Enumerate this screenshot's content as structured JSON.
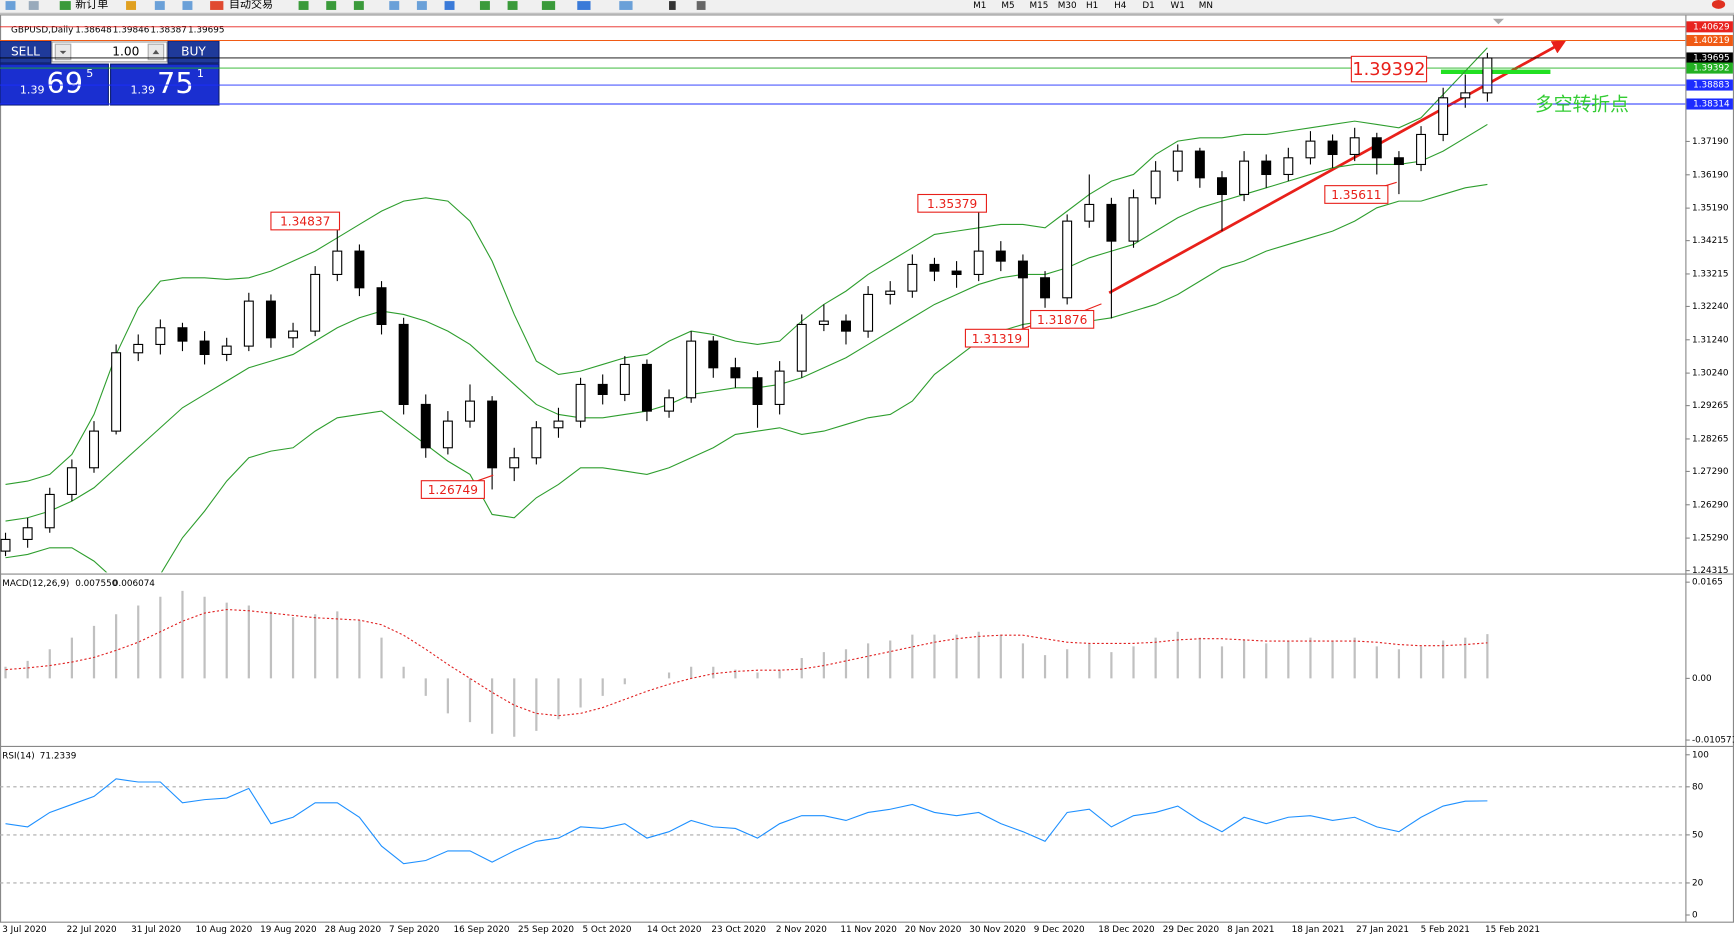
{
  "toolbar": {
    "buttons": [
      "新订单",
      "自动交易"
    ],
    "timeframes": [
      "M1",
      "M5",
      "M15",
      "M30",
      "H1",
      "H4",
      "D1",
      "W1",
      "MN"
    ]
  },
  "trade_panel": {
    "sell": "SELL",
    "buy": "BUY",
    "lot": "1.00",
    "bid": {
      "big": "1.39",
      "pips": "69",
      "point": "5"
    },
    "ask": {
      "big": "1.39",
      "pips": "75",
      "point": "1"
    }
  },
  "chart_data": [
    {
      "type": "candlestick",
      "title": "GBPUSD,Daily",
      "header_values": [
        "1.38648",
        "1.39846",
        "1.38387",
        "1.39695"
      ],
      "up_color": "#ffffff",
      "down_color": "#000000",
      "band_color": "#2e9e2e",
      "ylim": [
        1.2426,
        1.4097
      ],
      "yticks": [
        {
          "value": 1.3719,
          "label": "1.37190"
        },
        {
          "value": 1.3619,
          "label": "1.36190"
        },
        {
          "value": 1.3519,
          "label": "1.35190"
        },
        {
          "value": 1.34215,
          "label": "1.34215"
        },
        {
          "value": 1.33215,
          "label": "1.33215"
        },
        {
          "value": 1.3224,
          "label": "1.32240"
        },
        {
          "value": 1.3124,
          "label": "1.31240"
        },
        {
          "value": 1.3024,
          "label": "1.30240"
        },
        {
          "value": 1.29265,
          "label": "1.29265"
        },
        {
          "value": 1.28265,
          "label": "1.28265"
        },
        {
          "value": 1.2729,
          "label": "1.27290"
        },
        {
          "value": 1.2629,
          "label": "1.26290"
        },
        {
          "value": 1.2529,
          "label": "1.25290"
        },
        {
          "value": 1.24315,
          "label": "1.24315"
        }
      ],
      "price_tags": [
        {
          "value": 1.40629,
          "color": "#e8231f"
        },
        {
          "value": 1.40219,
          "color": "#f05a14"
        },
        {
          "value": 1.39695,
          "color": "#000000"
        },
        {
          "value": 1.39392,
          "color": "#22b022"
        },
        {
          "value": 1.38883,
          "color": "#1c2cff"
        },
        {
          "value": 1.38314,
          "color": "#1c2cff"
        }
      ],
      "annotations": [
        "1.34837",
        "1.35379",
        "1.31319",
        "1.31876",
        "1.26749",
        "1.35611",
        "1.39392"
      ],
      "note": "多空转折点",
      "x_labels": [
        "3 Jul 2020",
        "22 Jul 2020",
        "31 Jul 2020",
        "10 Aug 2020",
        "19 Aug 2020",
        "28 Aug 2020",
        "7 Sep 2020",
        "16 Sep 2020",
        "25 Sep 2020",
        "5 Oct 2020",
        "14 Oct 2020",
        "23 Oct 2020",
        "2 Nov 2020",
        "11 Nov 2020",
        "20 Nov 2020",
        "30 Nov 2020",
        "9 Dec 2020",
        "18 Dec 2020",
        "29 Dec 2020",
        "8 Jan 2021",
        "18 Jan 2021",
        "27 Jan 2021",
        "5 Feb 2021",
        "15 Feb 2021"
      ],
      "ohlc": [
        [
          1.249,
          1.2545,
          1.2475,
          1.2525
        ],
        [
          1.2525,
          1.259,
          1.25,
          1.256
        ],
        [
          1.256,
          1.268,
          1.2545,
          1.266
        ],
        [
          1.266,
          1.2765,
          1.264,
          1.274
        ],
        [
          1.274,
          1.288,
          1.2725,
          1.285
        ],
        [
          1.285,
          1.311,
          1.284,
          1.3085
        ],
        [
          1.3085,
          1.314,
          1.306,
          1.311
        ],
        [
          1.311,
          1.3185,
          1.308,
          1.316
        ],
        [
          1.316,
          1.3175,
          1.309,
          1.312
        ],
        [
          1.312,
          1.315,
          1.305,
          1.308
        ],
        [
          1.308,
          1.313,
          1.306,
          1.3105
        ],
        [
          1.3105,
          1.3265,
          1.309,
          1.324
        ],
        [
          1.324,
          1.326,
          1.31,
          1.313
        ],
        [
          1.313,
          1.3175,
          1.31,
          1.315
        ],
        [
          1.315,
          1.3345,
          1.3135,
          1.332
        ],
        [
          1.332,
          1.3484,
          1.33,
          1.339
        ],
        [
          1.339,
          1.341,
          1.3255,
          1.328
        ],
        [
          1.328,
          1.33,
          1.314,
          1.317
        ],
        [
          1.317,
          1.319,
          1.29,
          1.293
        ],
        [
          1.293,
          1.296,
          1.277,
          1.28
        ],
        [
          1.28,
          1.291,
          1.278,
          1.288
        ],
        [
          1.288,
          1.299,
          1.286,
          1.294
        ],
        [
          1.294,
          1.2955,
          1.2675,
          1.274
        ],
        [
          1.274,
          1.28,
          1.27,
          1.277
        ],
        [
          1.277,
          1.288,
          1.275,
          1.286
        ],
        [
          1.286,
          1.292,
          1.283,
          1.288
        ],
        [
          1.288,
          1.301,
          1.286,
          1.299
        ],
        [
          1.299,
          1.302,
          1.293,
          1.296
        ],
        [
          1.296,
          1.3075,
          1.294,
          1.305
        ],
        [
          1.305,
          1.3065,
          1.288,
          1.291
        ],
        [
          1.291,
          1.2975,
          1.289,
          1.295
        ],
        [
          1.295,
          1.315,
          1.2935,
          1.312
        ],
        [
          1.312,
          1.3135,
          1.301,
          1.304
        ],
        [
          1.304,
          1.307,
          1.298,
          1.301
        ],
        [
          1.301,
          1.303,
          1.286,
          1.293
        ],
        [
          1.293,
          1.306,
          1.29,
          1.303
        ],
        [
          1.303,
          1.32,
          1.301,
          1.317
        ],
        [
          1.317,
          1.323,
          1.315,
          1.318
        ],
        [
          1.318,
          1.32,
          1.311,
          1.315
        ],
        [
          1.315,
          1.3285,
          1.313,
          1.326
        ],
        [
          1.326,
          1.33,
          1.323,
          1.327
        ],
        [
          1.327,
          1.338,
          1.325,
          1.335
        ],
        [
          1.335,
          1.337,
          1.33,
          1.333
        ],
        [
          1.333,
          1.336,
          1.328,
          1.332
        ],
        [
          1.332,
          1.3538,
          1.33,
          1.339
        ],
        [
          1.339,
          1.342,
          1.333,
          1.336
        ],
        [
          1.336,
          1.338,
          1.3132,
          1.331
        ],
        [
          1.331,
          1.333,
          1.322,
          1.325
        ],
        [
          1.325,
          1.35,
          1.323,
          1.348
        ],
        [
          1.348,
          1.362,
          1.346,
          1.353
        ],
        [
          1.353,
          1.355,
          1.3188,
          1.342
        ],
        [
          1.342,
          1.3575,
          1.34,
          1.355
        ],
        [
          1.355,
          1.366,
          1.353,
          1.363
        ],
        [
          1.363,
          1.371,
          1.36,
          1.369
        ],
        [
          1.369,
          1.37,
          1.358,
          1.361
        ],
        [
          1.361,
          1.363,
          1.345,
          1.356
        ],
        [
          1.356,
          1.369,
          1.354,
          1.366
        ],
        [
          1.366,
          1.368,
          1.358,
          1.362
        ],
        [
          1.362,
          1.37,
          1.36,
          1.367
        ],
        [
          1.367,
          1.375,
          1.365,
          1.372
        ],
        [
          1.372,
          1.374,
          1.364,
          1.368
        ],
        [
          1.368,
          1.376,
          1.366,
          1.373
        ],
        [
          1.373,
          1.3745,
          1.362,
          1.367
        ],
        [
          1.367,
          1.369,
          1.3561,
          1.365
        ],
        [
          1.365,
          1.3765,
          1.363,
          1.374
        ],
        [
          1.374,
          1.388,
          1.372,
          1.385
        ],
        [
          1.385,
          1.392,
          1.382,
          1.38648
        ],
        [
          1.38648,
          1.39846,
          1.38387,
          1.39695
        ]
      ],
      "bollinger": {
        "upper": [
          1.269,
          1.27,
          1.272,
          1.278,
          1.29,
          1.308,
          1.322,
          1.33,
          1.331,
          1.331,
          1.3305,
          1.331,
          1.333,
          1.336,
          1.339,
          1.343,
          1.347,
          1.351,
          1.354,
          1.355,
          1.354,
          1.348,
          1.336,
          1.32,
          1.306,
          1.302,
          1.303,
          1.305,
          1.307,
          1.308,
          1.312,
          1.315,
          1.314,
          1.312,
          1.311,
          1.312,
          1.318,
          1.323,
          1.327,
          1.332,
          1.336,
          1.34,
          1.344,
          1.345,
          1.346,
          1.347,
          1.347,
          1.346,
          1.351,
          1.356,
          1.36,
          1.362,
          1.368,
          1.372,
          1.373,
          1.373,
          1.374,
          1.374,
          1.375,
          1.376,
          1.377,
          1.378,
          1.377,
          1.376,
          1.379,
          1.386,
          1.393,
          1.4
        ],
        "middle": [
          1.258,
          1.259,
          1.261,
          1.264,
          1.268,
          1.274,
          1.28,
          1.286,
          1.292,
          1.296,
          1.3,
          1.304,
          1.306,
          1.308,
          1.312,
          1.316,
          1.319,
          1.321,
          1.32,
          1.318,
          1.315,
          1.311,
          1.305,
          1.299,
          1.293,
          1.29,
          1.289,
          1.289,
          1.29,
          1.291,
          1.293,
          1.296,
          1.297,
          1.298,
          1.298,
          1.299,
          1.301,
          1.304,
          1.307,
          1.311,
          1.315,
          1.319,
          1.323,
          1.326,
          1.329,
          1.331,
          1.332,
          1.332,
          1.334,
          1.337,
          1.339,
          1.341,
          1.345,
          1.349,
          1.352,
          1.354,
          1.356,
          1.358,
          1.36,
          1.362,
          1.364,
          1.365,
          1.365,
          1.365,
          1.366,
          1.369,
          1.373,
          1.377
        ],
        "lower": [
          1.247,
          1.248,
          1.25,
          1.25,
          1.246,
          1.24,
          1.238,
          1.242,
          1.253,
          1.261,
          1.27,
          1.277,
          1.279,
          1.28,
          1.285,
          1.289,
          1.29,
          1.291,
          1.286,
          1.281,
          1.276,
          1.272,
          1.26,
          1.259,
          1.265,
          1.269,
          1.274,
          1.274,
          1.273,
          1.272,
          1.274,
          1.277,
          1.28,
          1.284,
          1.285,
          1.286,
          1.284,
          1.285,
          1.287,
          1.289,
          1.29,
          1.294,
          1.302,
          1.307,
          1.312,
          1.315,
          1.317,
          1.318,
          1.317,
          1.318,
          1.319,
          1.321,
          1.323,
          1.326,
          1.33,
          1.334,
          1.336,
          1.339,
          1.341,
          1.343,
          1.345,
          1.348,
          1.352,
          1.354,
          1.354,
          1.356,
          1.358,
          1.359
        ]
      }
    },
    {
      "type": "macd",
      "title": "MACD(12,26,9)",
      "header_values": [
        "0.007550",
        "0.006074"
      ],
      "hist_color": "#c0c0c0",
      "signal_color": "#e02020",
      "ylim": [
        -0.0112,
        0.0176
      ],
      "yticks": [
        0.0165,
        {
          "value": 0,
          "label": "0.00"
        },
        -0.010571
      ],
      "histogram": [
        0.002,
        0.003,
        0.005,
        0.007,
        0.009,
        0.011,
        0.0125,
        0.014,
        0.015,
        0.014,
        0.013,
        0.0125,
        0.0115,
        0.0105,
        0.011,
        0.0115,
        0.01,
        0.007,
        0.002,
        -0.003,
        -0.006,
        -0.0075,
        -0.0095,
        -0.01,
        -0.009,
        -0.007,
        -0.005,
        -0.003,
        -0.001,
        0.0,
        0.001,
        0.002,
        0.002,
        0.0015,
        0.001,
        0.0015,
        0.0035,
        0.0045,
        0.005,
        0.006,
        0.0065,
        0.0075,
        0.0075,
        0.0075,
        0.008,
        0.0075,
        0.006,
        0.004,
        0.005,
        0.006,
        0.0045,
        0.0055,
        0.007,
        0.008,
        0.007,
        0.0055,
        0.0065,
        0.006,
        0.0065,
        0.007,
        0.0065,
        0.007,
        0.0055,
        0.005,
        0.0055,
        0.0065,
        0.007,
        0.0076
      ],
      "signal": [
        0.0015,
        0.0018,
        0.0022,
        0.0028,
        0.0036,
        0.0048,
        0.0062,
        0.008,
        0.0098,
        0.0112,
        0.0118,
        0.0116,
        0.0112,
        0.0108,
        0.0104,
        0.0102,
        0.01,
        0.0092,
        0.0074,
        0.005,
        0.0024,
        0.0,
        -0.0024,
        -0.0046,
        -0.006,
        -0.0064,
        -0.006,
        -0.005,
        -0.0036,
        -0.0022,
        -0.001,
        0.0,
        0.0008,
        0.0012,
        0.0014,
        0.0014,
        0.0016,
        0.0022,
        0.003,
        0.0038,
        0.0046,
        0.0054,
        0.0062,
        0.0068,
        0.0072,
        0.0074,
        0.0074,
        0.0068,
        0.0062,
        0.006,
        0.006,
        0.006,
        0.0062,
        0.0066,
        0.0068,
        0.0068,
        0.0066,
        0.0064,
        0.0064,
        0.0064,
        0.0064,
        0.0064,
        0.0062,
        0.0058,
        0.0056,
        0.0056,
        0.0058,
        0.0061
      ]
    },
    {
      "type": "rsi",
      "title": "RSI(14)",
      "header_values": [
        "71.2339"
      ],
      "color": "#1e90ff",
      "ylim": [
        0,
        100
      ],
      "yticks": [
        100,
        80,
        50,
        20,
        0
      ],
      "levels": [
        80,
        50,
        20
      ],
      "values": [
        57,
        55,
        64,
        69,
        74,
        85,
        83,
        83,
        70,
        72,
        73,
        79,
        57,
        61,
        70,
        70,
        61,
        43,
        32,
        34,
        40,
        40,
        33,
        40,
        46,
        48,
        55,
        54,
        57,
        48,
        52,
        59,
        55,
        54,
        48,
        57,
        62,
        62,
        59,
        64,
        66,
        69,
        64,
        62,
        64,
        57,
        52,
        46,
        64,
        66,
        55,
        62,
        64,
        68,
        59,
        52,
        61,
        57,
        61,
        62,
        59,
        61,
        55,
        52,
        61,
        68,
        71,
        71.23
      ]
    }
  ]
}
